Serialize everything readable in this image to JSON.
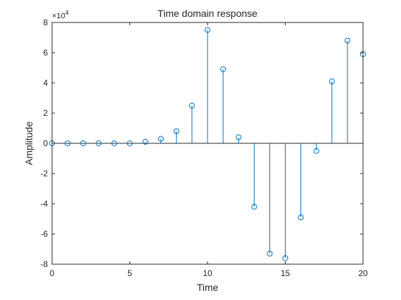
{
  "chart_data": {
    "type": "stem",
    "title": "Time domain response",
    "xlabel": "Time",
    "ylabel": "Amplitude",
    "y_multiplier": "×10",
    "y_exponent": "4",
    "xlim": [
      0,
      20
    ],
    "ylim": [
      -8,
      8
    ],
    "xticks": [
      "0",
      "5",
      "10",
      "15",
      "20"
    ],
    "yticks": [
      "8",
      "6",
      "4",
      "2",
      "0",
      "-2",
      "-4",
      "-6",
      "-8"
    ],
    "grid": false,
    "x": [
      0,
      1,
      2,
      3,
      4,
      5,
      6,
      7,
      8,
      9,
      10,
      11,
      12,
      13,
      14,
      15,
      16,
      17,
      18,
      19,
      20
    ],
    "values": [
      0.0,
      0.0,
      0.0,
      0.0,
      0.0,
      0.0,
      0.1,
      0.3,
      0.8,
      2.5,
      7.5,
      4.9,
      0.4,
      -4.2,
      -7.3,
      -7.6,
      -4.9,
      -0.5,
      4.1,
      6.8,
      5.9
    ],
    "series_color": "#0072BD"
  }
}
